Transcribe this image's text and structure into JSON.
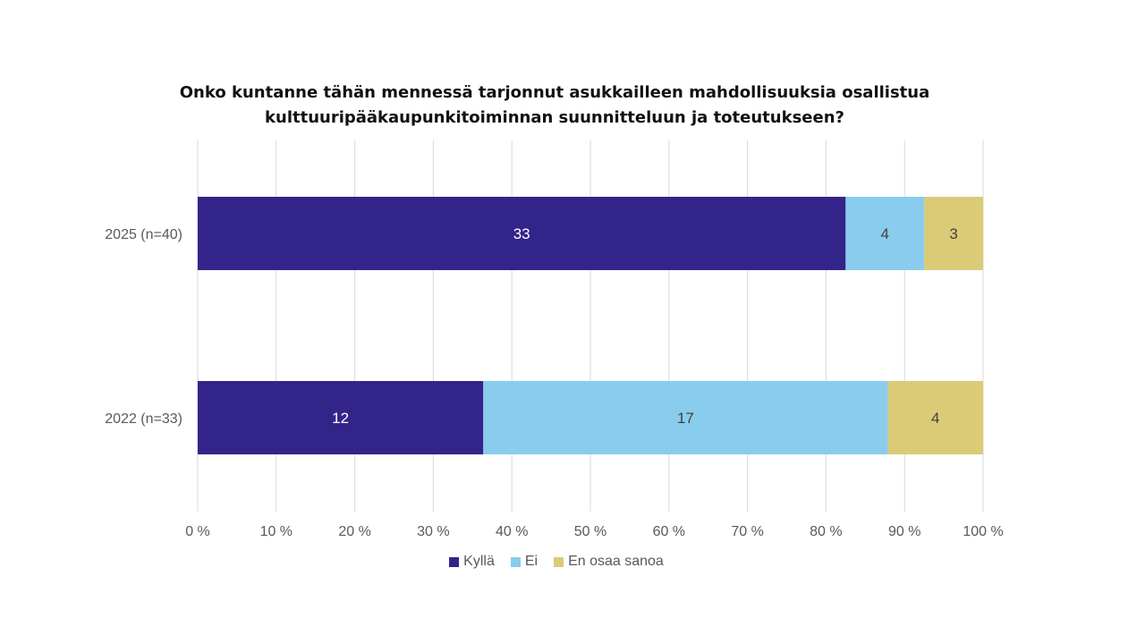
{
  "chart_data": {
    "type": "bar",
    "orientation": "horizontal",
    "stacked": "percent",
    "title_lines": [
      "Onko kuntanne tähän mennessä tarjonnut asukkailleen mahdollisuuksia osallistua",
      "kulttuuripääkaupunkitoiminnan suunnitteluun ja toteutukseen?"
    ],
    "categories": [
      "2025 (n=40)",
      "2022 (n=33)"
    ],
    "series": [
      {
        "name": "Kyllä",
        "values": [
          33,
          12
        ],
        "color": "#33248a",
        "label_color": "#ffffff"
      },
      {
        "name": "Ei",
        "values": [
          4,
          17
        ],
        "color": "#89ccee",
        "label_color": "#404040"
      },
      {
        "name": "En osaa sanoa",
        "values": [
          3,
          4
        ],
        "color": "#dbcb77",
        "label_color": "#404040"
      }
    ],
    "x_ticks": [
      "0 %",
      "10 %",
      "20 %",
      "30 %",
      "40 %",
      "50 %",
      "60 %",
      "70 %",
      "80 %",
      "90 %",
      "100 %"
    ],
    "xlim": [
      0,
      100
    ],
    "grid": true,
    "legend_position": "bottom"
  }
}
